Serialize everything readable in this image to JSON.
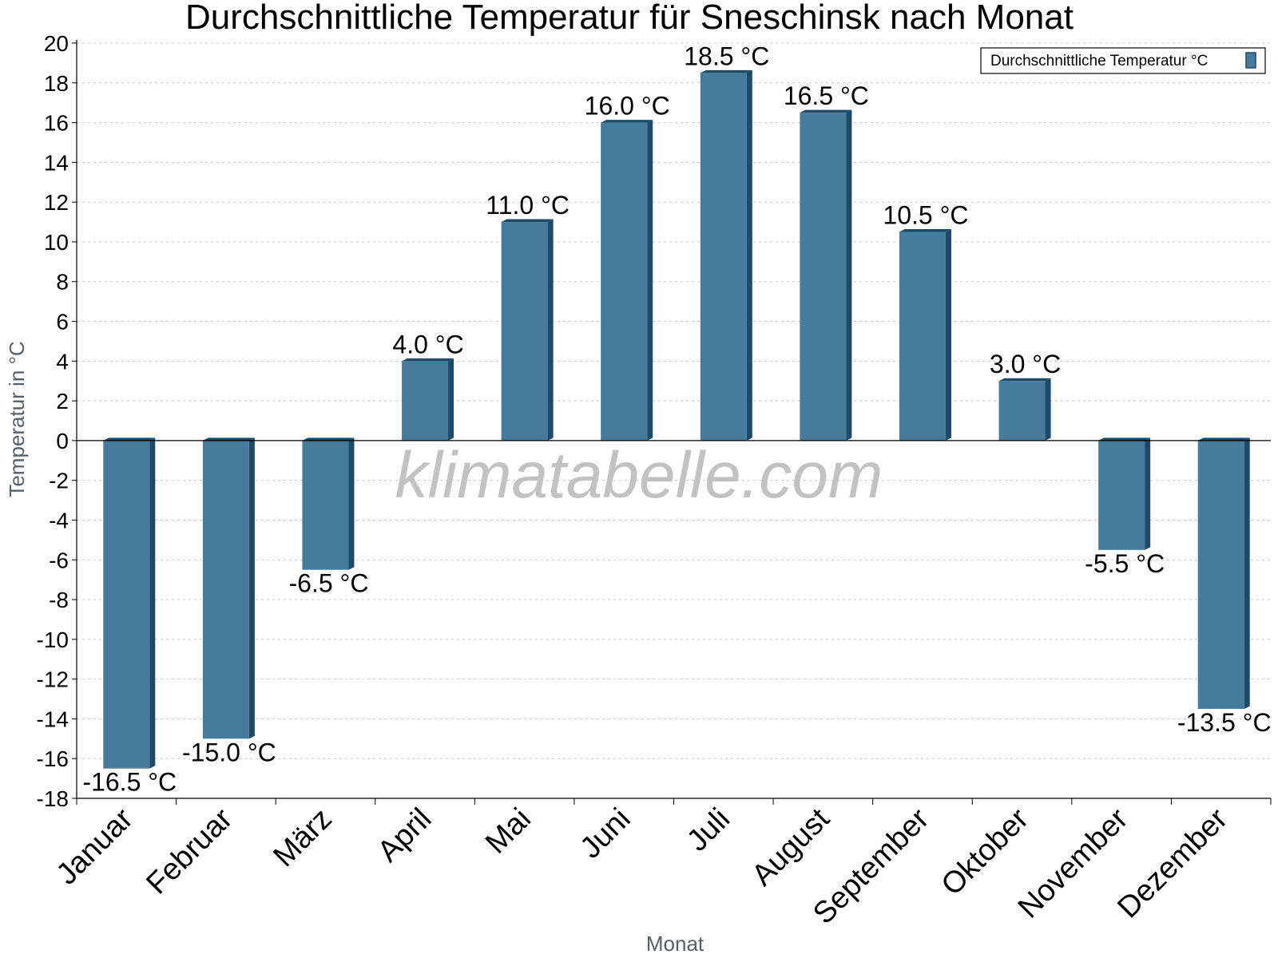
{
  "chart_data": {
    "type": "bar",
    "title": "Durchschnittliche Temperatur für Sneschinsk nach Monat",
    "xlabel": "Monat",
    "ylabel": "Temperatur in °C",
    "categories": [
      "Januar",
      "Februar",
      "März",
      "April",
      "Mai",
      "Juni",
      "Juli",
      "August",
      "September",
      "Oktober",
      "November",
      "Dezember"
    ],
    "series": [
      {
        "name": "Durchschnittliche Temperatur °C",
        "values": [
          -16.5,
          -15.0,
          -6.5,
          4.0,
          11.0,
          16.0,
          18.5,
          16.5,
          10.5,
          3.0,
          -5.5,
          -13.5
        ],
        "labels": [
          "-16.5 °C",
          "-15.0 °C",
          "-6.5 °C",
          "4.0 °C",
          "11.0 °C",
          "16.0 °C",
          "18.5 °C",
          "16.5 °C",
          "10.5 °C",
          "3.0 °C",
          "-5.5 °C",
          "-13.5 °C"
        ],
        "color": "#467b9c"
      }
    ],
    "ylim": [
      -18,
      20
    ],
    "yticks": [
      20,
      18,
      16,
      14,
      12,
      10,
      8,
      6,
      4,
      2,
      0,
      -2,
      -4,
      -6,
      -8,
      -10,
      -12,
      -14,
      -16,
      -18
    ],
    "grid": true,
    "legend_position": "top-right",
    "watermark": "klimatabelle.com",
    "colors": {
      "bar": "#467b9c",
      "bar_dark": "#1d4a69",
      "grid": "#c8c8c8"
    }
  }
}
